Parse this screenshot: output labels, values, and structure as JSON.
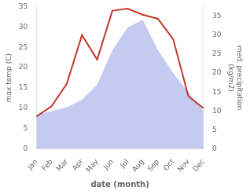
{
  "chart_data": {
    "type": "line",
    "categories": [
      "Jan",
      "Feb",
      "Mar",
      "Apr",
      "May",
      "Jun",
      "Jul",
      "Aug",
      "Sep",
      "Oct",
      "Nov",
      "Dec"
    ],
    "xlabel": "date (month)",
    "ylabel": "max temp (C)",
    "y2label": "med. precipitation\n(kg/m2)",
    "series": [
      {
        "type": "area",
        "axis": "y2",
        "color": "#c5caf0",
        "values": [
          9,
          10,
          11,
          13,
          17,
          26,
          32,
          34,
          26,
          20,
          15,
          10
        ]
      },
      {
        "type": "line",
        "color": "#c0392b",
        "values": [
          8,
          10.5,
          16,
          28,
          22,
          34,
          34.5,
          33,
          32,
          27,
          13,
          10
        ]
      }
    ],
    "ylim": [
      0,
      35
    ],
    "yticks": [
      0,
      5,
      10,
      15,
      20,
      25,
      30,
      35
    ],
    "y2lim": [
      0,
      37.5
    ],
    "y2ticks": [
      0,
      5,
      10,
      15,
      20,
      25,
      30,
      35
    ],
    "grid": false
  }
}
